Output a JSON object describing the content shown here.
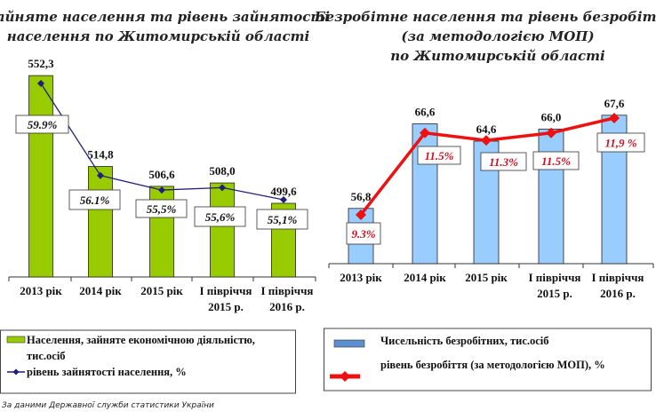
{
  "chart_data": [
    {
      "type": "bar",
      "title": "Зайняте населення та рівень зайнятості населення по Житомирській області",
      "title_lines": [
        "Зайняте населення та рівень зайнятості",
        "населення по Житомирській області"
      ],
      "categories": [
        [
          "2013 рік"
        ],
        [
          "2014 рік"
        ],
        [
          "2015 рік"
        ],
        [
          "I півріччя",
          "2015 р."
        ],
        [
          "I півріччя",
          "2016 р."
        ]
      ],
      "series": [
        {
          "name": "Населення, зайняте економічною діяльністю, тис.осіб",
          "type": "bar",
          "color": "#99cc00",
          "values": [
            552.3,
            514.8,
            506.6,
            508.0,
            499.6
          ],
          "labels": [
            "552,3",
            "514,8",
            "506,6",
            "508,0",
            "499,6"
          ]
        },
        {
          "name": "рівень зайнятості населення, %",
          "type": "line",
          "color": "#1f1f7a",
          "values": [
            59.9,
            56.1,
            55.5,
            55.6,
            55.1
          ],
          "labels": [
            "59.9%",
            "56.1%",
            "55,5%",
            "55,6%",
            "55,1%"
          ]
        }
      ],
      "legend_lines": [
        [
          "Населення, зайняте економічною діяльністю,",
          "тис.осіб"
        ],
        [
          "рівень зайнятості населення, %"
        ]
      ],
      "legend_placement": "bottom",
      "grid": false
    },
    {
      "type": "bar",
      "title": "Безробітне населення та рівень безробіття (за методологією МОП) по Житомирській області",
      "title_lines": [
        "Безробітне населення та рівень безробіття",
        "(за методологією МОП)",
        "по Житомирській області"
      ],
      "categories": [
        [
          "2013 рік"
        ],
        [
          "2014 рік"
        ],
        [
          "2015 рік"
        ],
        [
          "I півріччя",
          "2015 р."
        ],
        [
          "I півріччя",
          "2016 р."
        ]
      ],
      "series": [
        {
          "name": "Чисельність безробітних, тис.осіб",
          "type": "bar",
          "color": "#99ccff",
          "values": [
            56.8,
            66.6,
            64.6,
            66.0,
            67.6
          ],
          "labels": [
            "56,8",
            "66,6",
            "64,6",
            "66,0",
            "67,6"
          ]
        },
        {
          "name": "рівень безробіття (за методологією МОП), %",
          "type": "line",
          "color": "#ee1111",
          "values": [
            9.3,
            11.5,
            11.3,
            11.5,
            11.9
          ],
          "labels": [
            "9.3%",
            "11.5%",
            "11.3%",
            "11.5%",
            "11,9 %"
          ]
        }
      ],
      "legend_placement": "bottom",
      "grid": false
    }
  ],
  "footnote": "За даними Державної служби статистики України"
}
